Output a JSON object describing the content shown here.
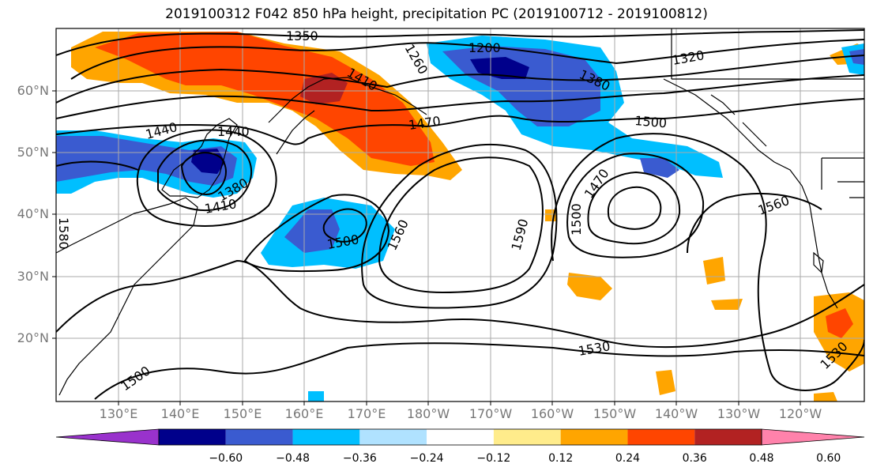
{
  "title": "2019100312 F042 850 hPa height, precipitation PC (2019100712 - 2019100812)",
  "lat_labels": [
    "60°N",
    "50°N",
    "40°N",
    "30°N",
    "20°N"
  ],
  "lon_labels": [
    "130°E",
    "140°E",
    "150°E",
    "160°E",
    "170°E",
    "180°W",
    "170°W",
    "160°W",
    "150°W",
    "140°W",
    "130°W",
    "120°W"
  ],
  "colorbar": {
    "ticks": [
      "−0.60",
      "−0.48",
      "−0.36",
      "−0.24",
      "−0.12",
      "0.12",
      "0.24",
      "0.36",
      "0.48",
      "0.60"
    ],
    "colors": [
      "#9932cc",
      "#00008b",
      "#3a5bd0",
      "#00bfff",
      "#b0e2ff",
      "#ffffff",
      "#ffec8b",
      "#ffa500",
      "#ff4500",
      "#b22222",
      "#ff82ab"
    ]
  },
  "contour_labels": [
    "1350",
    "1200",
    "1260",
    "1320",
    "1410",
    "1440",
    "1440",
    "1470",
    "1380",
    "1500",
    "1410",
    "1380",
    "1500",
    "1560",
    "1590",
    "1500",
    "1470",
    "1560",
    "1580",
    "1530",
    "1500",
    "1530"
  ],
  "colors": {
    "neg_strong": "#00008b",
    "neg_mid": "#3a5bd0",
    "neg_light": "#00bfff",
    "pos_light": "#ffa500",
    "pos_mid": "#ff4500",
    "pos_strong": "#b22222"
  }
}
